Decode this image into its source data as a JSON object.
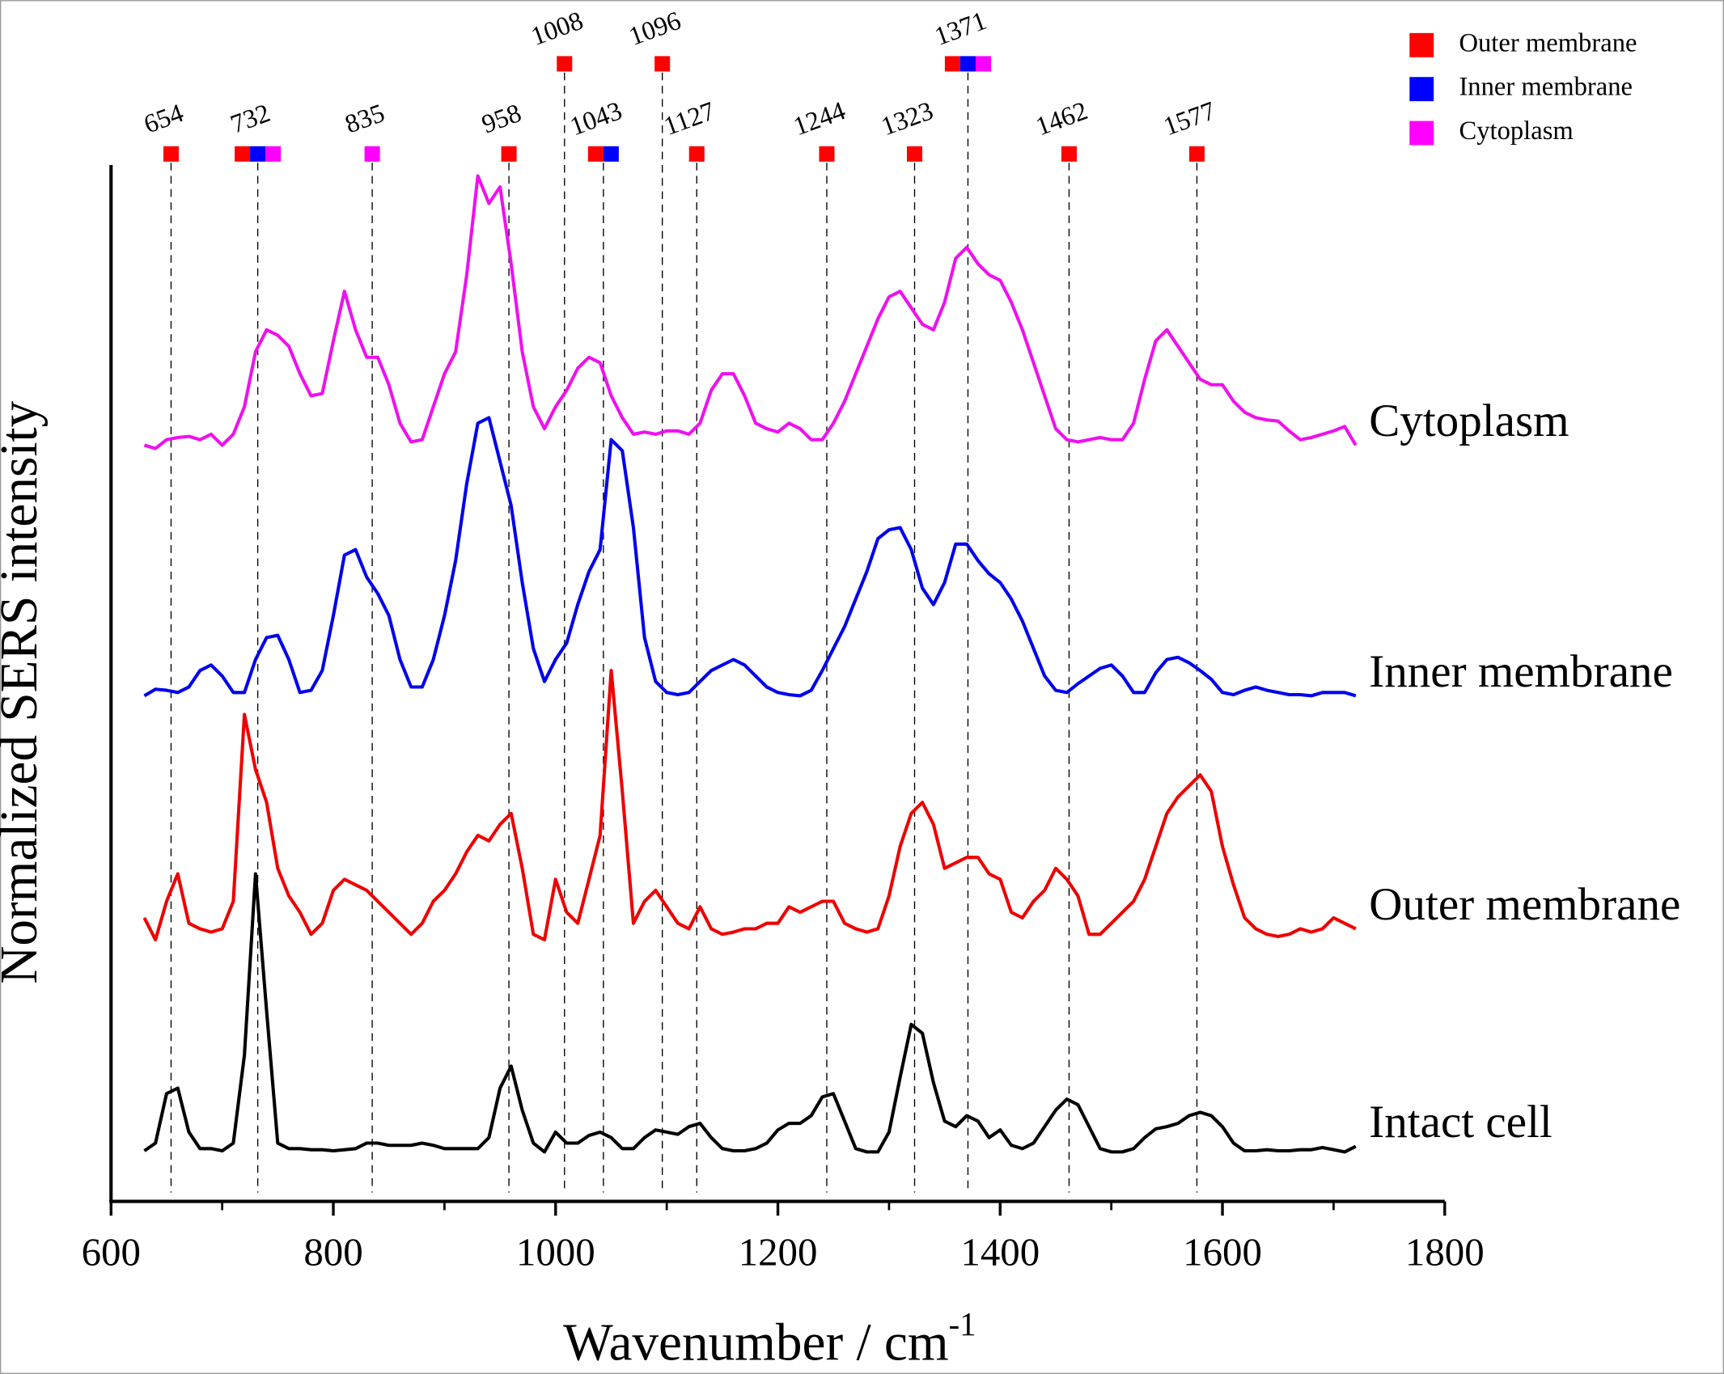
{
  "chart_data": {
    "type": "line",
    "xlabel": "Wavenumber / cm",
    "xlabel_superscript": "-1",
    "ylabel": "Normalized SERS intensity",
    "xlim": [
      600,
      1800
    ],
    "xticks": [
      600,
      800,
      1000,
      1200,
      1400,
      1600,
      1800
    ],
    "xminorticks": [
      700,
      900,
      1100,
      1300,
      1500,
      1700
    ],
    "ylim": [
      0,
      943
    ],
    "x": [
      630,
      640,
      650,
      660,
      670,
      680,
      690,
      700,
      710,
      720,
      730,
      740,
      750,
      760,
      770,
      780,
      790,
      800,
      810,
      820,
      830,
      840,
      850,
      860,
      870,
      880,
      890,
      900,
      910,
      920,
      930,
      940,
      950,
      960,
      970,
      980,
      990,
      1000,
      1010,
      1020,
      1030,
      1040,
      1050,
      1060,
      1070,
      1080,
      1090,
      1100,
      1110,
      1120,
      1130,
      1140,
      1150,
      1160,
      1170,
      1180,
      1190,
      1200,
      1210,
      1220,
      1230,
      1240,
      1250,
      1260,
      1270,
      1280,
      1290,
      1300,
      1310,
      1320,
      1330,
      1340,
      1350,
      1360,
      1370,
      1380,
      1390,
      1400,
      1410,
      1420,
      1430,
      1440,
      1450,
      1460,
      1470,
      1480,
      1490,
      1500,
      1510,
      1520,
      1530,
      1540,
      1550,
      1560,
      1570,
      1580,
      1590,
      1600,
      1610,
      1620,
      1630,
      1640,
      1650,
      1660,
      1670,
      1680,
      1690,
      1700,
      1710,
      1720
    ],
    "series": [
      {
        "name": "Intact cell",
        "color": "#000000",
        "values": [
          46,
          53,
          98,
          103,
          63,
          48,
          48,
          46,
          53,
          133,
          298,
          173,
          53,
          48,
          48,
          47,
          47,
          46,
          47,
          48,
          53,
          53,
          51,
          51,
          51,
          53,
          51,
          48,
          48,
          48,
          48,
          58,
          103,
          123,
          83,
          53,
          45,
          63,
          53,
          53,
          60,
          63,
          58,
          48,
          48,
          58,
          65,
          63,
          61,
          68,
          71,
          58,
          48,
          46,
          46,
          48,
          53,
          65,
          71,
          71,
          78,
          95,
          98,
          73,
          48,
          45,
          45,
          63,
          113,
          161,
          153,
          108,
          73,
          68,
          78,
          73,
          58,
          65,
          51,
          48,
          53,
          68,
          83,
          93,
          88,
          68,
          48,
          45,
          45,
          48,
          58,
          66,
          68,
          71,
          78,
          81,
          78,
          68,
          53,
          46,
          46,
          47,
          46,
          46,
          47,
          47,
          49,
          47,
          45,
          50
        ]
      },
      {
        "name": "Outer membrane",
        "color": "#ee0000",
        "values": [
          258,
          238,
          273,
          298,
          253,
          248,
          245,
          248,
          273,
          443,
          393,
          363,
          303,
          278,
          263,
          243,
          253,
          283,
          293,
          288,
          283,
          273,
          263,
          253,
          243,
          253,
          273,
          283,
          298,
          318,
          333,
          328,
          343,
          353,
          303,
          243,
          238,
          293,
          263,
          253,
          293,
          333,
          483,
          373,
          253,
          273,
          283,
          268,
          253,
          248,
          268,
          248,
          243,
          245,
          248,
          248,
          253,
          253,
          268,
          263,
          268,
          273,
          273,
          253,
          248,
          245,
          248,
          278,
          323,
          353,
          363,
          343,
          303,
          308,
          313,
          313,
          298,
          293,
          263,
          258,
          273,
          283,
          303,
          293,
          278,
          243,
          243,
          253,
          263,
          273,
          293,
          323,
          353,
          368,
          378,
          388,
          373,
          323,
          288,
          258,
          248,
          243,
          241,
          243,
          248,
          245,
          248,
          258,
          253,
          248
        ]
      },
      {
        "name": "Inner membrane",
        "color": "#0000ee",
        "values": [
          460,
          466,
          465,
          463,
          468,
          483,
          488,
          478,
          463,
          463,
          493,
          513,
          515,
          493,
          463,
          465,
          483,
          533,
          588,
          593,
          568,
          553,
          533,
          493,
          468,
          468,
          493,
          533,
          583,
          653,
          708,
          713,
          673,
          633,
          563,
          503,
          473,
          493,
          508,
          543,
          573,
          593,
          693,
          683,
          613,
          513,
          473,
          463,
          461,
          463,
          473,
          483,
          488,
          493,
          488,
          478,
          468,
          463,
          461,
          460,
          465,
          483,
          503,
          523,
          548,
          573,
          603,
          611,
          613,
          593,
          558,
          543,
          563,
          598,
          598,
          583,
          571,
          563,
          548,
          528,
          503,
          478,
          465,
          463,
          471,
          478,
          485,
          488,
          478,
          463,
          463,
          481,
          493,
          495,
          490,
          483,
          475,
          463,
          461,
          465,
          468,
          465,
          463,
          461,
          461,
          460,
          463,
          463,
          463,
          460
        ]
      },
      {
        "name": "Cytoplasm",
        "color": "#ee11ee",
        "values": [
          688,
          685,
          693,
          695,
          696,
          693,
          698,
          688,
          698,
          723,
          773,
          793,
          788,
          778,
          753,
          733,
          735,
          783,
          828,
          793,
          768,
          768,
          743,
          708,
          691,
          693,
          723,
          753,
          773,
          843,
          933,
          908,
          923,
          853,
          773,
          723,
          703,
          723,
          738,
          758,
          768,
          763,
          733,
          713,
          698,
          700,
          698,
          701,
          701,
          698,
          708,
          738,
          753,
          753,
          733,
          708,
          703,
          700,
          708,
          703,
          693,
          693,
          708,
          728,
          753,
          778,
          803,
          823,
          828,
          813,
          798,
          793,
          818,
          858,
          868,
          853,
          843,
          838,
          818,
          793,
          763,
          733,
          703,
          693,
          691,
          693,
          695,
          693,
          693,
          708,
          748,
          783,
          793,
          778,
          763,
          748,
          743,
          743,
          728,
          718,
          713,
          711,
          710,
          701,
          693,
          695,
          698,
          701,
          705,
          688
        ]
      }
    ],
    "legend": [
      {
        "name": "Outer membrane",
        "color": "#ff0000"
      },
      {
        "name": "Inner membrane",
        "color": "#0000ff"
      },
      {
        "name": "Cytoplasm",
        "color": "#ff00ff"
      }
    ],
    "peaks": [
      {
        "label": 654,
        "markers": [
          "#ff0000"
        ]
      },
      {
        "label": 732,
        "markers": [
          "#ff0000",
          "#0000ff",
          "#ff00ff"
        ]
      },
      {
        "label": 835,
        "markers": [
          "#ff00ff"
        ]
      },
      {
        "label": 958,
        "markers": [
          "#ff0000"
        ]
      },
      {
        "label": 1008,
        "markers": [
          "#ff0000"
        ]
      },
      {
        "label": 1043,
        "markers": [
          "#ff0000",
          "#0000ff"
        ]
      },
      {
        "label": 1096,
        "markers": [
          "#ff0000"
        ]
      },
      {
        "label": 1127,
        "markers": [
          "#ff0000"
        ]
      },
      {
        "label": 1244,
        "markers": [
          "#ff0000"
        ]
      },
      {
        "label": 1323,
        "markers": [
          "#ff0000"
        ]
      },
      {
        "label": 1371,
        "markers": [
          "#ff0000",
          "#0000ff",
          "#ff00ff"
        ]
      },
      {
        "label": 1462,
        "markers": [
          "#ff0000"
        ]
      },
      {
        "label": 1577,
        "markers": [
          "#ff0000"
        ]
      }
    ]
  }
}
